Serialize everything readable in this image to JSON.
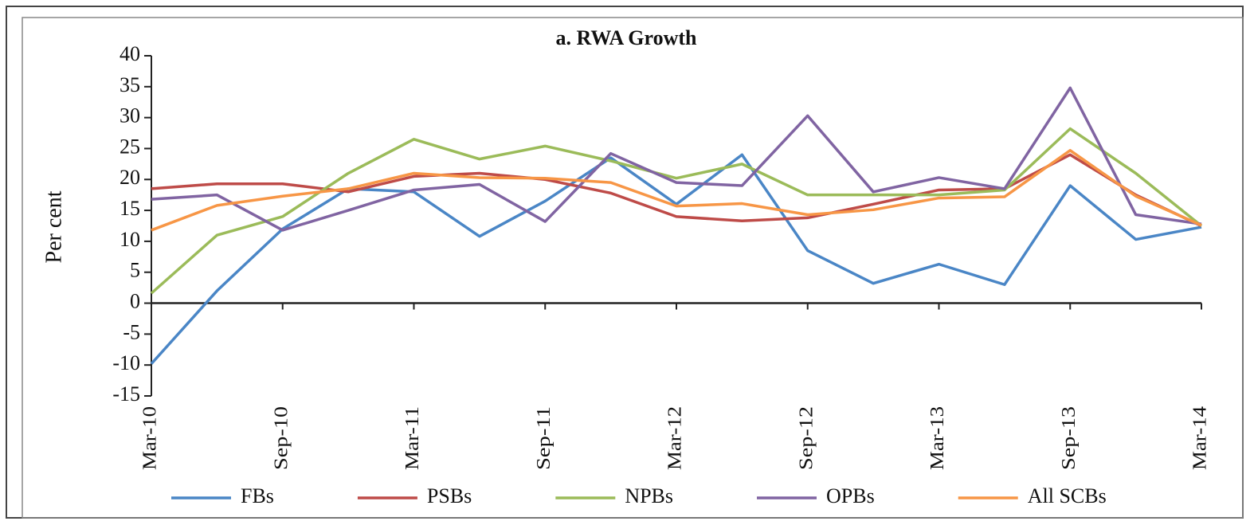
{
  "chart_data": {
    "type": "line",
    "title": "a. RWA Growth",
    "y_label": "Per cent",
    "categories": [
      "Mar-10",
      null,
      "Sep-10",
      null,
      "Mar-11",
      null,
      "Sep-11",
      null,
      "Mar-12",
      null,
      "Sep-12",
      null,
      "Mar-13",
      null,
      "Sep-13",
      null,
      "Mar-14"
    ],
    "ylim": [
      -15,
      40
    ],
    "yticks": [
      -15,
      -10,
      -5,
      0,
      5,
      10,
      15,
      20,
      25,
      30,
      35,
      40
    ],
    "series": [
      {
        "name": "FBs",
        "color": "#4a86c6",
        "values": [
          -9.8,
          2,
          12,
          18.5,
          18,
          10.8,
          16.5,
          23.5,
          16,
          24,
          8.5,
          3.2,
          6.3,
          3,
          19,
          10.3,
          12.3
        ]
      },
      {
        "name": "PSBs",
        "color": "#be4b48",
        "values": [
          18.5,
          19.3,
          19.3,
          18,
          20.5,
          21,
          20,
          17.8,
          14,
          13.3,
          13.8,
          16,
          18.3,
          18.5,
          24,
          17.5,
          12.5
        ]
      },
      {
        "name": "NPBs",
        "color": "#9bbb59",
        "values": [
          1.6,
          11,
          14,
          21,
          26.5,
          23.3,
          25.4,
          23,
          20.2,
          22.5,
          17.5,
          17.5,
          17.5,
          18.3,
          28.2,
          21,
          12.5
        ]
      },
      {
        "name": "OPBs",
        "color": "#8064a2",
        "values": [
          16.8,
          17.5,
          11.8,
          15,
          18.3,
          19.2,
          13.2,
          24.2,
          19.5,
          19,
          30.3,
          18,
          20.3,
          18.5,
          34.8,
          14.3,
          12.8
        ]
      },
      {
        "name": "All SCBs",
        "color": "#f79646",
        "values": [
          11.8,
          15.8,
          17.3,
          18.5,
          21,
          20.3,
          20.2,
          19.5,
          15.7,
          16.1,
          14.3,
          15.1,
          17,
          17.2,
          24.7,
          17.3,
          12.6
        ]
      }
    ]
  }
}
